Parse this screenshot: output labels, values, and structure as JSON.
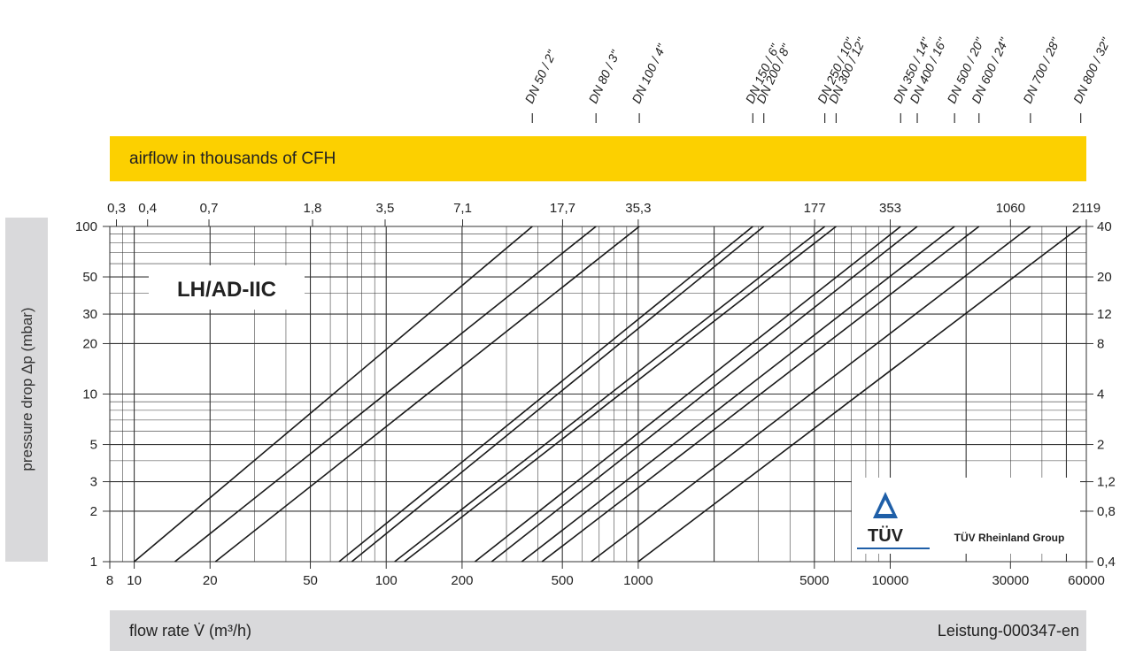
{
  "chart_data": {
    "type": "line",
    "title": "LH/AD-IIC",
    "xlabel": "flow rate V̇ (m³/h)",
    "ylabel": "pressure drop Δp (mbar)",
    "top_axis_label": "airflow in thousands of CFH",
    "x_scale": "log",
    "y_scale": "log",
    "xlim": [
      8,
      60000
    ],
    "ylim": [
      1,
      100
    ],
    "grid": true,
    "x_ticks": [
      8,
      10,
      20,
      50,
      100,
      200,
      500,
      1000,
      5000,
      10000,
      30000,
      60000
    ],
    "x_tick_labels": [
      "8",
      "10",
      "20",
      "50",
      "100",
      "200",
      "500",
      "1000",
      "5000",
      "10000",
      "30000",
      "60000"
    ],
    "y_ticks": [
      1,
      2,
      3,
      5,
      10,
      20,
      30,
      50,
      100
    ],
    "y_tick_labels": [
      "1",
      "2",
      "3",
      "5",
      "10",
      "20",
      "30",
      "50",
      "100"
    ],
    "top_ticks": [
      8.5,
      11.3,
      19.8,
      51,
      99,
      201,
      501,
      1000,
      5012,
      10000,
      30000,
      60000
    ],
    "top_tick_labels": [
      "0,3",
      "0,4",
      "0,7",
      "1,8",
      "3,5",
      "7,1",
      "17,7",
      "35,3",
      "177",
      "353",
      "1060",
      "2119"
    ],
    "right_ticks": [
      1,
      2,
      3,
      5,
      10,
      20,
      30,
      50,
      100
    ],
    "right_tick_labels": [
      "0,4",
      "0,8",
      "1,2",
      "2",
      "4",
      "8",
      "12",
      "20",
      "40"
    ],
    "series": [
      {
        "name": "DN 50 / 2\"",
        "x": [
          10,
          380
        ],
        "y": [
          1,
          100
        ]
      },
      {
        "name": "DN 80 / 3\"",
        "x": [
          14.5,
          680
        ],
        "y": [
          1,
          100
        ]
      },
      {
        "name": "DN 100 / 4\"",
        "x": [
          21,
          1010
        ],
        "y": [
          1,
          100
        ]
      },
      {
        "name": "DN 150 / 6\"",
        "x": [
          65,
          2850
        ],
        "y": [
          1,
          100
        ]
      },
      {
        "name": "DN 200 / 8\"",
        "x": [
          73,
          3150
        ],
        "y": [
          1,
          100
        ]
      },
      {
        "name": "DN 250 / 10\"",
        "x": [
          108,
          5500
        ],
        "y": [
          1,
          100
        ]
      },
      {
        "name": "DN 300 / 12\"",
        "x": [
          118,
          6100
        ],
        "y": [
          1,
          100
        ]
      },
      {
        "name": "DN 350 / 14\"",
        "x": [
          225,
          11000
        ],
        "y": [
          1,
          100
        ]
      },
      {
        "name": "DN 400 / 16\"",
        "x": [
          262,
          12800
        ],
        "y": [
          1,
          100
        ]
      },
      {
        "name": "DN 500 / 20\"",
        "x": [
          345,
          18000
        ],
        "y": [
          1,
          100
        ]
      },
      {
        "name": "DN 600 / 24\"",
        "x": [
          415,
          22500
        ],
        "y": [
          1,
          100
        ]
      },
      {
        "name": "DN 700 / 28\"",
        "x": [
          650,
          36000
        ],
        "y": [
          1,
          100
        ]
      },
      {
        "name": "DN 800 / 32\"",
        "x": [
          1000,
          57000
        ],
        "y": [
          1,
          100
        ]
      }
    ]
  },
  "logo": {
    "brand": "TÜV",
    "group": "TÜV Rheinland Group"
  },
  "footer": {
    "code": "Leistung-000347-en"
  },
  "colors": {
    "accent_bar": "#fcd000",
    "label_bar": "#d9d9db",
    "logo_blue": "#1f5fa8",
    "line": "#1a1a1a"
  }
}
